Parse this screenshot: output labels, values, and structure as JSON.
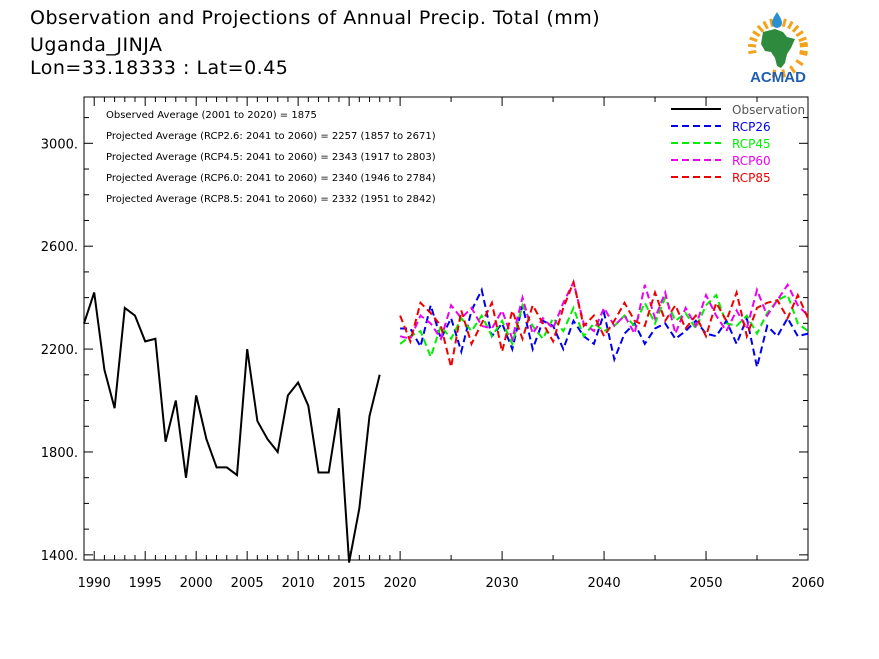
{
  "title": {
    "line1": "Observation and Projections of Annual Precip. Total (mm)",
    "line2": "Uganda_JINJA",
    "line3": "Lon=33.18333 : Lat=0.45"
  },
  "logo": {
    "text": "ACMAD",
    "colors": {
      "africa": "#2e8b3e",
      "rays": "#f3a21b",
      "drop": "#2a8fd0",
      "text": "#1f5fae"
    }
  },
  "annotations": [
    "Observed Average (2001 to 2020) = 1875",
    "Projected Average (RCP2.6: 2041 to 2060) = 2257 (1857 to 2671)",
    "Projected Average (RCP4.5: 2041 to 2060) = 2343 (1917 to 2803)",
    "Projected Average (RCP6.0: 2041 to 2060) = 2340 (1946 to 2784)",
    "Projected Average (RCP8.5: 2041 to 2060) = 2332 (1951 to 2842)"
  ],
  "chart_data": {
    "type": "line",
    "xlim": [
      1989,
      2060
    ],
    "ylim": [
      1380,
      3180
    ],
    "x_ticks": [
      1990,
      1995,
      2000,
      2005,
      2010,
      2015,
      2020,
      2030,
      2040,
      2050,
      2060
    ],
    "x_tick_labels": [
      "1990",
      "1995",
      "2000",
      "2005",
      "2010",
      "2015",
      "2020",
      "2030",
      "2040",
      "2050",
      "2060"
    ],
    "y_ticks": [
      1400,
      1800,
      2200,
      2600,
      3000
    ],
    "y_tick_labels": [
      "1400.",
      "1800.",
      "2200.",
      "2600.",
      "3000."
    ],
    "legend_position": "top-right",
    "series": [
      {
        "name": "Observation",
        "color": "#000000",
        "dashed": false,
        "x_start": 1989,
        "values": [
          2300,
          2420,
          2120,
          1970,
          2360,
          2330,
          2230,
          2240,
          1840,
          2000,
          1700,
          2020,
          1850,
          1740,
          1740,
          1710,
          2200,
          1920,
          1850,
          1800,
          2020,
          2070,
          1980,
          1720,
          1720,
          1970,
          1370,
          1580,
          1940,
          2100
        ]
      },
      {
        "name": "RCP26",
        "color": "#0000ee",
        "dashed": true,
        "x_start": 2020,
        "values": [
          2280,
          2280,
          2210,
          2370,
          2240,
          2320,
          2190,
          2350,
          2430,
          2250,
          2300,
          2200,
          2370,
          2200,
          2310,
          2290,
          2200,
          2310,
          2250,
          2220,
          2340,
          2160,
          2260,
          2300,
          2220,
          2280,
          2300,
          2240,
          2270,
          2310,
          2260,
          2250,
          2310,
          2220,
          2320,
          2130,
          2290,
          2250,
          2320,
          2250,
          2260
        ]
      },
      {
        "name": "RCP45",
        "color": "#00ee00",
        "dashed": true,
        "x_start": 2020,
        "values": [
          2220,
          2250,
          2270,
          2170,
          2290,
          2240,
          2320,
          2270,
          2330,
          2250,
          2310,
          2220,
          2370,
          2290,
          2240,
          2320,
          2270,
          2360,
          2250,
          2300,
          2270,
          2290,
          2330,
          2290,
          2380,
          2300,
          2400,
          2310,
          2340,
          2280,
          2370,
          2410,
          2300,
          2290,
          2330,
          2260,
          2340,
          2390,
          2410,
          2300,
          2270
        ]
      },
      {
        "name": "RCP60",
        "color": "#ee00ee",
        "dashed": true,
        "x_start": 2020,
        "values": [
          2250,
          2240,
          2330,
          2300,
          2240,
          2370,
          2320,
          2360,
          2290,
          2280,
          2350,
          2240,
          2400,
          2260,
          2320,
          2280,
          2380,
          2460,
          2300,
          2270,
          2360,
          2290,
          2330,
          2260,
          2450,
          2320,
          2420,
          2260,
          2360,
          2290,
          2410,
          2330,
          2270,
          2350,
          2280,
          2430,
          2330,
          2390,
          2450,
          2370,
          2330
        ]
      },
      {
        "name": "RCP85",
        "color": "#ee0000",
        "dashed": true,
        "x_start": 2020,
        "values": [
          2330,
          2230,
          2380,
          2340,
          2290,
          2130,
          2350,
          2220,
          2300,
          2380,
          2190,
          2350,
          2240,
          2370,
          2300,
          2230,
          2360,
          2460,
          2290,
          2330,
          2250,
          2310,
          2380,
          2310,
          2290,
          2420,
          2310,
          2370,
          2280,
          2330,
          2250,
          2380,
          2310,
          2420,
          2250,
          2360,
          2380,
          2390,
          2320,
          2410,
          2320
        ]
      }
    ]
  }
}
